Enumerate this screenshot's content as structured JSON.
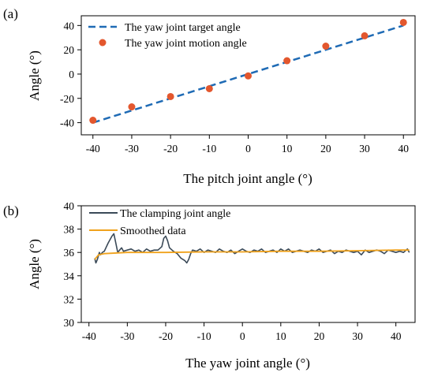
{
  "chart_data": [
    {
      "panel": "(a)",
      "type": "scatter",
      "xlabel": "The pitch joint angle (°)",
      "ylabel": "Angle (°)",
      "xlim": [
        -43,
        43
      ],
      "ylim": [
        -50,
        48
      ],
      "xticks": [
        -40,
        -30,
        -20,
        -10,
        0,
        10,
        20,
        30,
        40
      ],
      "yticks": [
        -40,
        -20,
        0,
        20,
        40
      ],
      "legend_position": "top-left",
      "grid": false,
      "colors": {
        "target": "#1f6bb5",
        "motion": "#e3572e"
      },
      "series": [
        {
          "name": "The yaw joint target angle",
          "style": "dashed-line",
          "x": [
            -40,
            40
          ],
          "y": [
            -40,
            40
          ]
        },
        {
          "name": "The yaw joint motion angle",
          "style": "points",
          "x": [
            -40,
            -30,
            -20,
            -10,
            0,
            10,
            20,
            30,
            40
          ],
          "y": [
            -38,
            -27,
            -18.5,
            -12,
            -1.5,
            11,
            23,
            31.5,
            42.5
          ]
        }
      ]
    },
    {
      "panel": "(b)",
      "type": "line",
      "xlabel": "The yaw joint angle (°)",
      "ylabel": "Angle (°)",
      "xlim": [
        -42,
        45
      ],
      "ylim": [
        30,
        40
      ],
      "xticks": [
        -40,
        -30,
        -20,
        -10,
        0,
        10,
        20,
        30,
        40
      ],
      "yticks": [
        30,
        32,
        34,
        36,
        38,
        40
      ],
      "legend_position": "top-left",
      "grid": false,
      "colors": {
        "clamping": "#3b4a58",
        "smoothed": "#f0a21c"
      },
      "series": [
        {
          "name": "The clamping joint angle",
          "x": [
            -38.5,
            -38.2,
            -37.8,
            -37.3,
            -37,
            -36.5,
            -36,
            -35,
            -34,
            -33.5,
            -33,
            -32.5,
            -32,
            -31.5,
            -31,
            -30,
            -29,
            -28,
            -27,
            -26,
            -25,
            -24,
            -23,
            -22,
            -21,
            -20.5,
            -20,
            -19.5,
            -19,
            -18,
            -17,
            -16,
            -15,
            -14.5,
            -14,
            -13.5,
            -13,
            -12,
            -11,
            -10,
            -9,
            -8,
            -7,
            -6,
            -5,
            -4,
            -3,
            -2,
            -1,
            0,
            1,
            2,
            3,
            4,
            5,
            6,
            7,
            8,
            9,
            10,
            11,
            12,
            13,
            14,
            15,
            16,
            17,
            18,
            19,
            20,
            21,
            22,
            23,
            24,
            25,
            26,
            27,
            28,
            29,
            30,
            31,
            32,
            33,
            34,
            35,
            36,
            37,
            38,
            39,
            40,
            41,
            42,
            43,
            43.5
          ],
          "y": [
            35.5,
            35.1,
            35.4,
            36.0,
            35.8,
            36.0,
            36.1,
            36.8,
            37.4,
            37.6,
            36.8,
            36.0,
            36.2,
            36.4,
            36.1,
            36.2,
            36.3,
            36.1,
            36.2,
            36.0,
            36.3,
            36.1,
            36.2,
            36.2,
            36.5,
            37.2,
            37.4,
            37.0,
            36.4,
            36.1,
            35.9,
            35.5,
            35.3,
            35.1,
            35.4,
            35.9,
            36.2,
            36.1,
            36.3,
            36.0,
            36.2,
            36.1,
            36.0,
            36.3,
            36.1,
            36.0,
            36.2,
            35.9,
            36.1,
            36.3,
            36.1,
            36.0,
            36.2,
            36.1,
            36.3,
            36.0,
            36.1,
            36.2,
            36.0,
            36.3,
            36.1,
            36.3,
            36.0,
            36.1,
            36.2,
            36.1,
            36.0,
            36.2,
            36.1,
            36.3,
            36.0,
            36.1,
            36.2,
            35.9,
            36.1,
            36.0,
            36.2,
            36.1,
            36.0,
            36.1,
            35.8,
            36.2,
            36.0,
            36.1,
            36.2,
            36.1,
            35.9,
            36.2,
            36.1,
            36.0,
            36.1,
            36.0,
            36.3,
            36.0
          ],
          "style": "solid"
        },
        {
          "name": "Smoothed data",
          "x": [
            -38.5,
            -37.5,
            -36,
            -30,
            -20,
            -10,
            0,
            10,
            20,
            30,
            40,
            43.5
          ],
          "y": [
            35.4,
            35.8,
            35.9,
            36.0,
            36.0,
            36.05,
            36.05,
            36.1,
            36.1,
            36.15,
            36.2,
            36.2
          ],
          "style": "solid"
        }
      ]
    }
  ]
}
